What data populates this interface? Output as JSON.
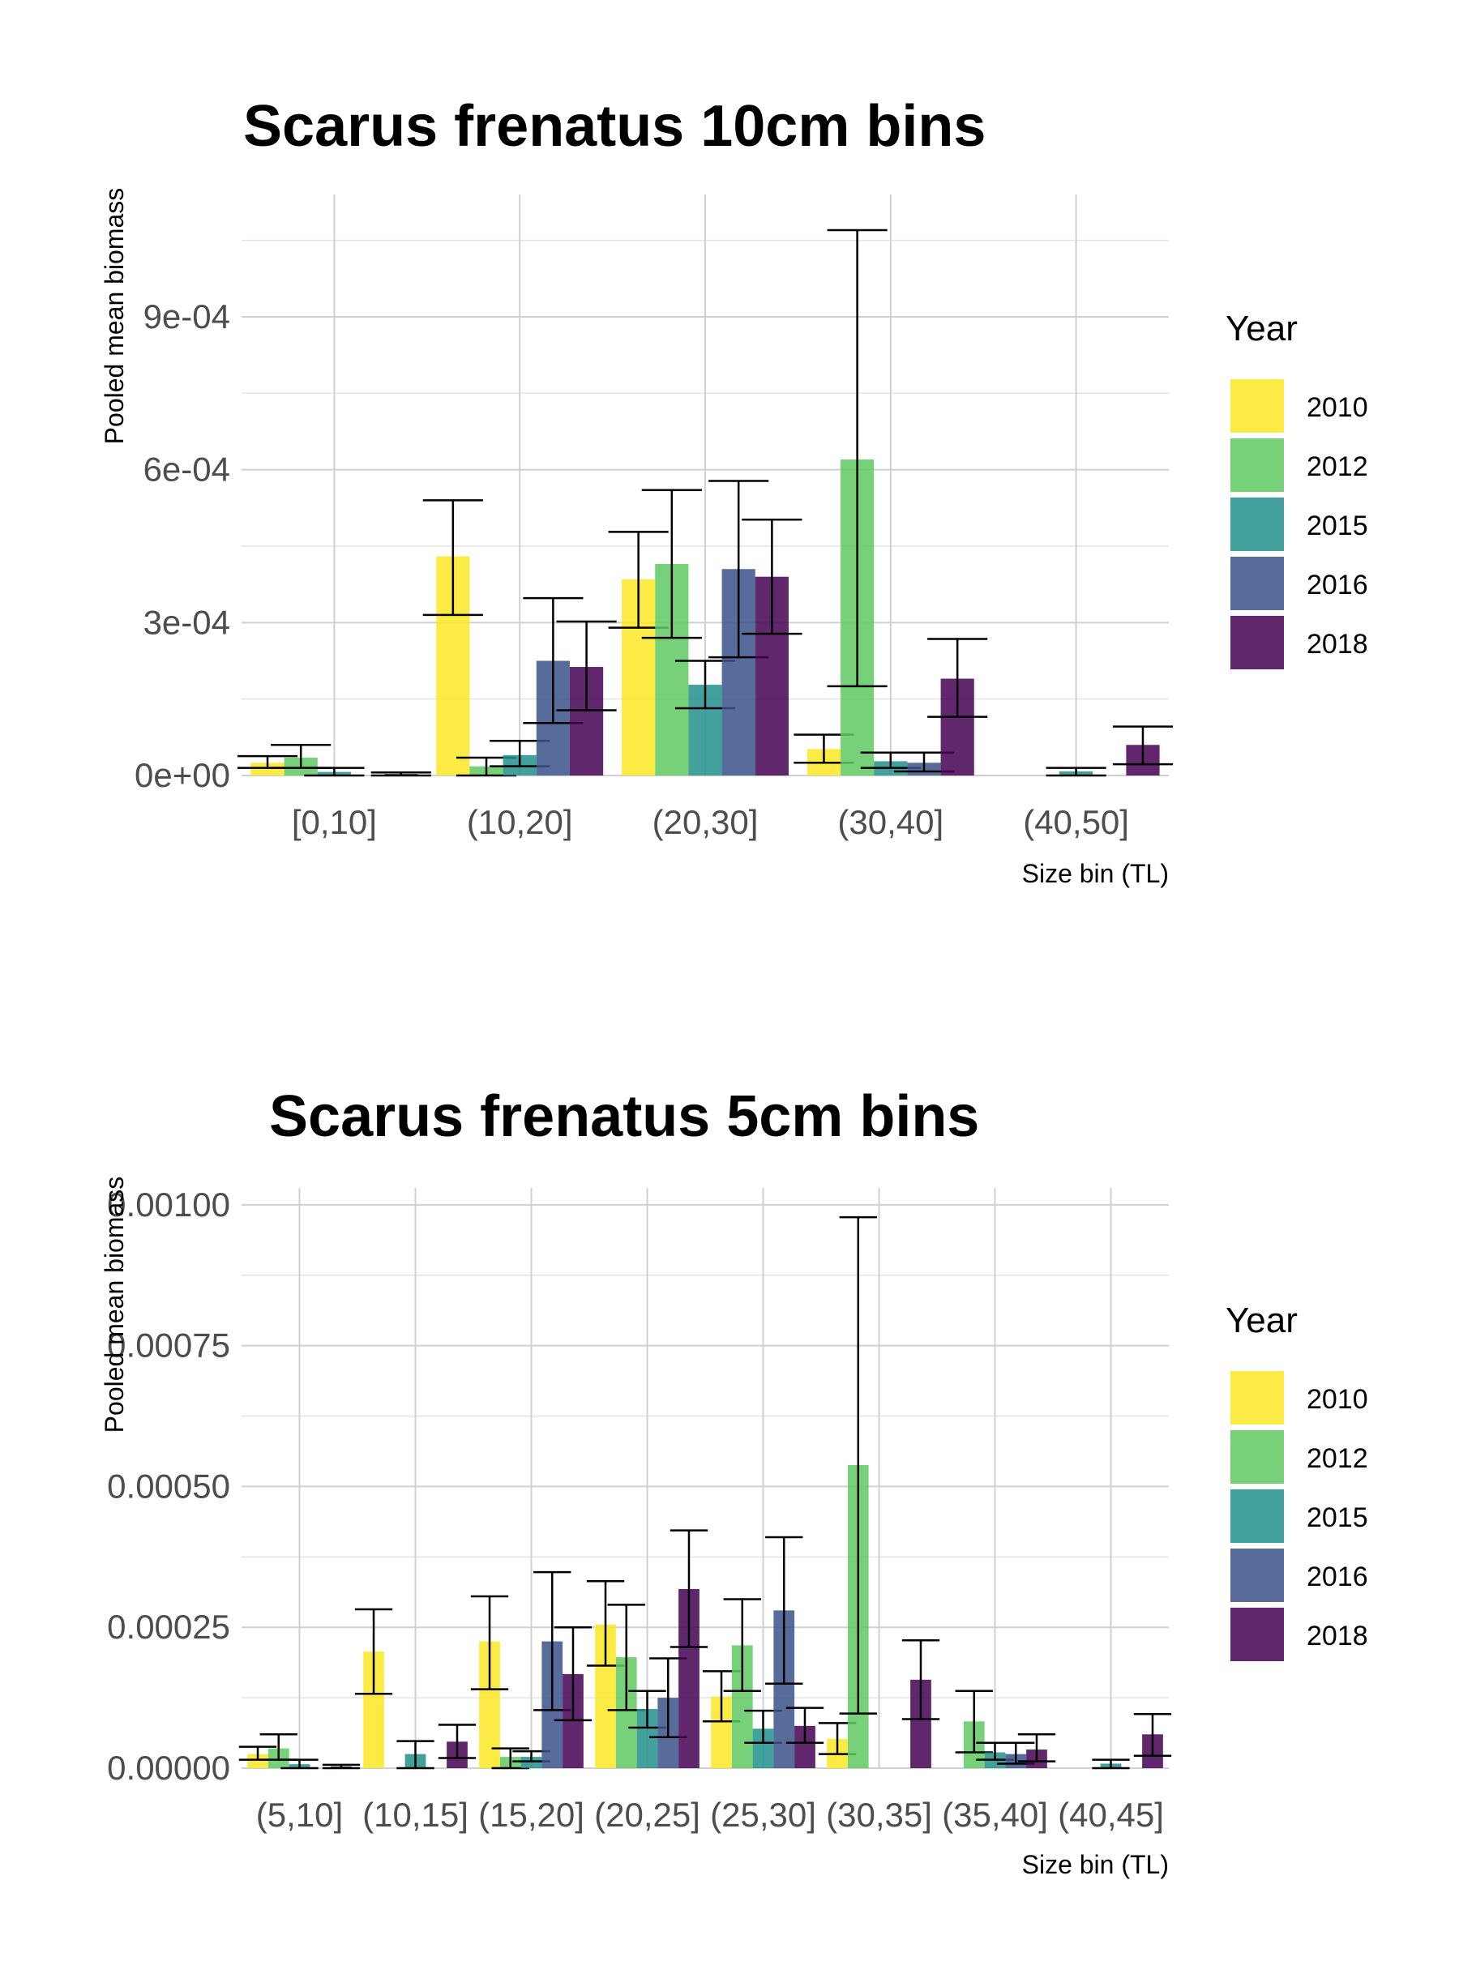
{
  "chart_data": [
    {
      "type": "bar",
      "title": "Scarus frenatus 10cm bins",
      "xlabel": "Size bin (TL)",
      "ylabel": "Pooled mean biomass",
      "categories": [
        "[0,10]",
        "(10,20]",
        "(20,30]",
        "(30,40]",
        "(40,50]"
      ],
      "ylim": [
        0,
        0.00114
      ],
      "yticks": [
        0,
        0.0003,
        0.0006,
        0.0009
      ],
      "ytick_labels": [
        "0e+00",
        "3e-04",
        "6e-04",
        "9e-04"
      ],
      "legend": {
        "title": "Year",
        "position": "right"
      },
      "grid": true,
      "series": [
        {
          "name": "2010",
          "color": "#FDE725",
          "values": [
            2.5e-05,
            0.00043,
            0.000385,
            5.2e-05,
            null
          ],
          "err_low": [
            1.5e-05,
            0.000315,
            0.00029,
            2.5e-05,
            null
          ],
          "err_high": [
            3.8e-05,
            0.00054,
            0.000478,
            8e-05,
            null
          ]
        },
        {
          "name": "2012",
          "color": "#5EC962",
          "values": [
            3.5e-05,
            1.8e-05,
            0.000415,
            0.00062,
            null
          ],
          "err_low": [
            1.5e-05,
            0.0,
            0.00027,
            0.000175,
            null
          ],
          "err_high": [
            6e-05,
            3.5e-05,
            0.00056,
            0.00107,
            null
          ]
        },
        {
          "name": "2015",
          "color": "#21918C",
          "values": [
            7e-06,
            4e-05,
            0.000178,
            2.8e-05,
            8e-06
          ],
          "err_low": [
            0.0,
            1.8e-05,
            0.000132,
            1.5e-05,
            0.0
          ],
          "err_high": [
            1.5e-05,
            6.8e-05,
            0.000225,
            4.5e-05,
            1.5e-05
          ]
        },
        {
          "name": "2016",
          "color": "#3B528B",
          "values": [
            null,
            0.000225,
            0.000405,
            2.5e-05,
            null
          ],
          "err_low": [
            null,
            0.000103,
            0.000232,
            8e-06,
            null
          ],
          "err_high": [
            null,
            0.000348,
            0.000578,
            4.5e-05,
            null
          ]
        },
        {
          "name": "2018",
          "color": "#440154",
          "values": [
            3e-06,
            0.000213,
            0.00039,
            0.00019,
            6e-05
          ],
          "err_low": [
            0.0,
            0.000128,
            0.000278,
            0.000115,
            2.2e-05
          ],
          "err_high": [
            6e-06,
            0.000302,
            0.000502,
            0.000268,
            9.6e-05
          ]
        }
      ]
    },
    {
      "type": "bar",
      "title": "Scarus frenatus 5cm bins",
      "xlabel": "Size bin (TL)",
      "ylabel": "Pooled mean biomass",
      "categories": [
        "(5,10]",
        "(10,15]",
        "(15,20]",
        "(20,25]",
        "(25,30]",
        "(30,35]",
        "(35,40]",
        "(40,45]"
      ],
      "ylim": [
        0,
        0.00103
      ],
      "yticks": [
        0,
        0.00025,
        0.0005,
        0.00075,
        0.001
      ],
      "ytick_labels": [
        "0.00000",
        "0.00025",
        "0.00050",
        "0.00075",
        "0.00100"
      ],
      "legend": {
        "title": "Year",
        "position": "right"
      },
      "grid": true,
      "series": [
        {
          "name": "2010",
          "color": "#FDE725",
          "values": [
            2.5e-05,
            0.000207,
            0.000225,
            0.000255,
            0.000127,
            5.2e-05,
            null,
            null
          ],
          "err_low": [
            1.5e-05,
            0.000132,
            0.00014,
            0.000182,
            8.3e-05,
            2.5e-05,
            null,
            null
          ],
          "err_high": [
            3.8e-05,
            0.000282,
            0.000305,
            0.000332,
            0.000172,
            8e-05,
            null,
            null
          ]
        },
        {
          "name": "2012",
          "color": "#5EC962",
          "values": [
            3.5e-05,
            null,
            2e-05,
            0.000197,
            0.000218,
            0.000538,
            8.3e-05,
            null
          ],
          "err_low": [
            1.5e-05,
            null,
            0.0,
            0.000103,
            0.000137,
            9.7e-05,
            2.8e-05,
            null
          ],
          "err_high": [
            6e-05,
            null,
            3.5e-05,
            0.00029,
            0.0003,
            0.000978,
            0.000137,
            null
          ]
        },
        {
          "name": "2015",
          "color": "#21918C",
          "values": [
            7e-06,
            2.5e-05,
            2e-05,
            0.000105,
            7e-05,
            null,
            2.8e-05,
            8e-06
          ],
          "err_low": [
            0.0,
            0.0,
            1.2e-05,
            7.2e-05,
            4.5e-05,
            null,
            1.5e-05,
            0.0
          ],
          "err_high": [
            1.5e-05,
            4.8e-05,
            3e-05,
            0.000137,
            0.000102,
            null,
            4.5e-05,
            1.5e-05
          ]
        },
        {
          "name": "2016",
          "color": "#3B528B",
          "values": [
            null,
            null,
            0.000225,
            0.000125,
            0.00028,
            null,
            2.5e-05,
            null
          ],
          "err_low": [
            null,
            null,
            0.000103,
            5.5e-05,
            0.00015,
            null,
            8e-06,
            null
          ],
          "err_high": [
            null,
            null,
            0.000348,
            0.000195,
            0.00041,
            null,
            4.5e-05,
            null
          ]
        },
        {
          "name": "2018",
          "color": "#440154",
          "values": [
            3e-06,
            4.7e-05,
            0.000167,
            0.000318,
            7.5e-05,
            0.000157,
            3.3e-05,
            6e-05
          ],
          "err_low": [
            0.0,
            1.8e-05,
            8.5e-05,
            0.000215,
            4.5e-05,
            8.7e-05,
            1.2e-05,
            2.2e-05
          ],
          "err_high": [
            6e-06,
            7.7e-05,
            0.00025,
            0.000422,
            0.000107,
            0.000227,
            6e-05,
            9.6e-05
          ]
        }
      ]
    }
  ]
}
